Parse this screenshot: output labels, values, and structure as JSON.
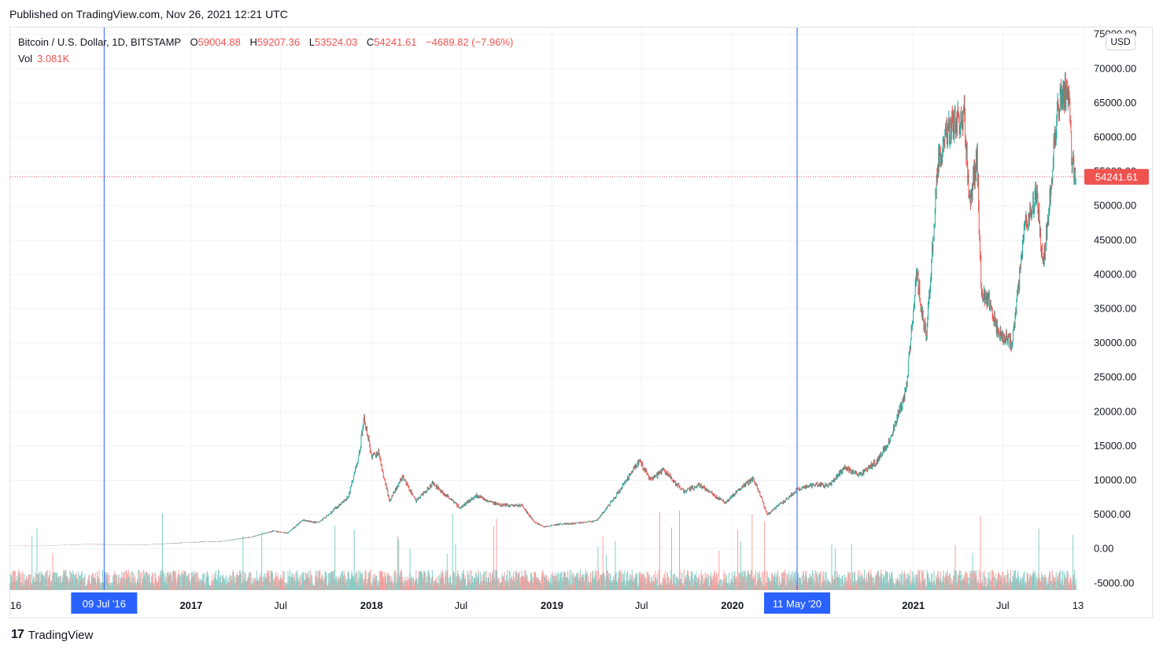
{
  "published": "Published on TradingView.com, Nov 26, 2021 12:21 UTC",
  "brand": {
    "logo": "17",
    "name": "TradingView"
  },
  "legend": {
    "symbol": "Bitcoin / U.S. Dollar, 1D, BITSTAMP",
    "open_label": "O",
    "open": "59004.88",
    "high_label": "H",
    "high": "59207.36",
    "low_label": "L",
    "low": "53524.03",
    "close_label": "C",
    "close": "54241.61",
    "change": "−4689.82 (−7.96%)",
    "vol_label": "Vol",
    "vol": "3.081K"
  },
  "currency_button": "USD",
  "colors": {
    "up": "#26a69a",
    "down": "#ef5350",
    "marker": "#2962ff",
    "price_line": "#ef5350"
  },
  "chart_data": {
    "type": "line",
    "ylim": [
      -6000,
      76000
    ],
    "y_ticks": [
      {
        "value": 75000,
        "label": "75000.00"
      },
      {
        "value": 70000,
        "label": "70000.00"
      },
      {
        "value": 65000,
        "label": "65000.00"
      },
      {
        "value": 60000,
        "label": "60000.00"
      },
      {
        "value": 55000,
        "label": "55000.00"
      },
      {
        "value": 50000,
        "label": "50000.00"
      },
      {
        "value": 45000,
        "label": "45000.00"
      },
      {
        "value": 40000,
        "label": "40000.00"
      },
      {
        "value": 35000,
        "label": "35000.00"
      },
      {
        "value": 30000,
        "label": "30000.00"
      },
      {
        "value": 25000,
        "label": "25000.00"
      },
      {
        "value": 20000,
        "label": "20000.00"
      },
      {
        "value": 15000,
        "label": "15000.00"
      },
      {
        "value": 10000,
        "label": "10000.00"
      },
      {
        "value": 5000,
        "label": "5000.00"
      },
      {
        "value": 0,
        "label": "0.00"
      },
      {
        "value": -5000,
        "label": "-5000.00"
      }
    ],
    "x_range": [
      "2016-01-01",
      "2021-12-13"
    ],
    "x_ticks": [
      {
        "date": "2016-01-01",
        "label": "16"
      },
      {
        "date": "2017-01-01",
        "label": "2017"
      },
      {
        "date": "2017-07-01",
        "label": "Jul"
      },
      {
        "date": "2018-01-01",
        "label": "2018"
      },
      {
        "date": "2018-07-01",
        "label": "Jul"
      },
      {
        "date": "2019-01-01",
        "label": "2019"
      },
      {
        "date": "2019-07-01",
        "label": "Jul"
      },
      {
        "date": "2020-01-01",
        "label": "2020"
      },
      {
        "date": "2021-01-01",
        "label": "2021"
      },
      {
        "date": "2021-07-01",
        "label": "Jul"
      },
      {
        "date": "2021-12-13",
        "label": "13"
      }
    ],
    "markers": [
      {
        "date": "2016-07-09",
        "label": "09 Jul '16"
      },
      {
        "date": "2020-05-11",
        "label": "11 May '20"
      }
    ],
    "last_price": {
      "value": 54241.61,
      "label": "54241.61"
    },
    "series": [
      {
        "x": [
          "2016-01-01",
          "2016-03-01",
          "2016-06-01",
          "2016-07-09",
          "2016-10-01",
          "2017-01-01",
          "2017-03-01",
          "2017-05-01",
          "2017-06-15",
          "2017-07-15",
          "2017-08-15",
          "2017-09-15",
          "2017-10-15",
          "2017-11-15",
          "2017-12-07",
          "2017-12-17",
          "2018-01-01",
          "2018-01-15",
          "2018-02-06",
          "2018-03-05",
          "2018-04-01",
          "2018-05-05",
          "2018-06-29",
          "2018-08-01",
          "2018-09-15",
          "2018-11-01",
          "2018-11-25",
          "2018-12-15",
          "2019-01-15",
          "2019-02-15",
          "2019-04-01",
          "2019-05-15",
          "2019-06-26",
          "2019-07-20",
          "2019-08-15",
          "2019-09-25",
          "2019-10-26",
          "2019-12-17",
          "2020-01-15",
          "2020-02-13",
          "2020-03-12",
          "2020-04-15",
          "2020-05-11",
          "2020-06-15",
          "2020-07-15",
          "2020-08-15",
          "2020-09-15",
          "2020-10-21",
          "2020-11-15",
          "2020-12-01",
          "2020-12-17",
          "2021-01-08",
          "2021-01-27",
          "2021-02-21",
          "2021-03-13",
          "2021-04-14",
          "2021-04-25",
          "2021-05-10",
          "2021-05-19",
          "2021-06-01",
          "2021-06-22",
          "2021-07-20",
          "2021-08-15",
          "2021-09-07",
          "2021-09-21",
          "2021-10-20",
          "2021-11-10",
          "2021-11-18",
          "2021-11-26"
        ],
        "y": [
          430,
          420,
          680,
          650,
          615,
          960,
          1100,
          1700,
          2600,
          2300,
          4200,
          3800,
          5600,
          7500,
          13800,
          19300,
          13500,
          14000,
          7000,
          10500,
          7000,
          9500,
          6000,
          7800,
          6400,
          6300,
          4000,
          3200,
          3600,
          3700,
          4100,
          8200,
          12900,
          10000,
          11500,
          8300,
          9400,
          6700,
          8700,
          10300,
          5000,
          7000,
          8700,
          9400,
          9200,
          11800,
          10700,
          12900,
          16000,
          19300,
          23000,
          40000,
          30500,
          57000,
          61000,
          63500,
          50000,
          57000,
          37000,
          36500,
          31500,
          30000,
          47000,
          52000,
          41000,
          64000,
          67500,
          57000,
          54241.61
        ]
      }
    ]
  }
}
